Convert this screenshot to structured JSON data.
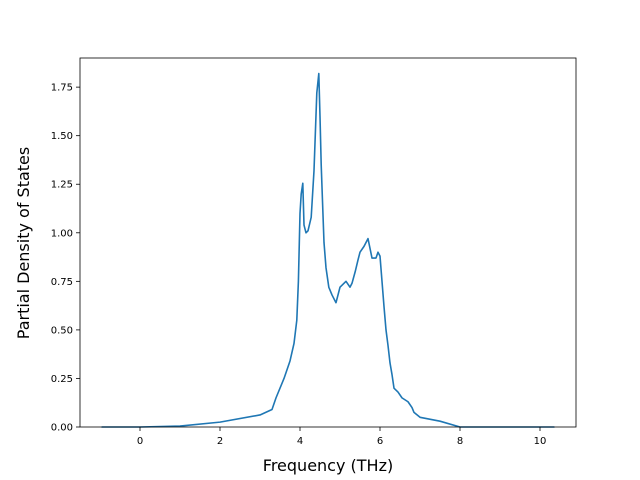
{
  "chart_data": {
    "type": "line",
    "title": "",
    "xlabel": "Frequency (THz)",
    "ylabel": "Partial Density of States",
    "xlim": [
      -1.5,
      10.9
    ],
    "ylim": [
      0.0,
      1.9
    ],
    "xticks": [
      0,
      2,
      4,
      6,
      8,
      10
    ],
    "yticks": [
      0.0,
      0.25,
      0.5,
      0.75,
      1.0,
      1.25,
      1.5,
      1.75
    ],
    "xtick_labels": [
      "0",
      "2",
      "4",
      "6",
      "8",
      "10"
    ],
    "ytick_labels": [
      "0.00",
      "0.25",
      "0.50",
      "0.75",
      "1.00",
      "1.25",
      "1.50",
      "1.75"
    ],
    "grid": false,
    "legend": "none",
    "line_color": "#1f77b4",
    "series": [
      {
        "x": [
          -0.95,
          0.0,
          1.0,
          2.0,
          3.0,
          3.3,
          3.4,
          3.6,
          3.75,
          3.85,
          3.92,
          3.96,
          4.0,
          4.03,
          4.07,
          4.1,
          4.15,
          4.2,
          4.28,
          4.35,
          4.42,
          4.47,
          4.5,
          4.53,
          4.57,
          4.6,
          4.65,
          4.72,
          4.8,
          4.9,
          5.0,
          5.15,
          5.25,
          5.3,
          5.38,
          5.45,
          5.5,
          5.6,
          5.7,
          5.8,
          5.9,
          5.95,
          6.0,
          6.05,
          6.1,
          6.15,
          6.2,
          6.25,
          6.3,
          6.35,
          6.45,
          6.55,
          6.7,
          6.8,
          6.85,
          7.0,
          7.5,
          8.0,
          8.5,
          9.0,
          9.2,
          9.35,
          9.6,
          10.35
        ],
        "y": [
          0.0,
          0.0,
          0.005,
          0.025,
          0.062,
          0.09,
          0.15,
          0.25,
          0.34,
          0.43,
          0.55,
          0.75,
          1.1,
          1.2,
          1.255,
          1.04,
          1.0,
          1.01,
          1.08,
          1.32,
          1.72,
          1.82,
          1.6,
          1.35,
          1.12,
          0.95,
          0.82,
          0.72,
          0.68,
          0.64,
          0.72,
          0.75,
          0.72,
          0.74,
          0.8,
          0.86,
          0.9,
          0.93,
          0.97,
          0.87,
          0.87,
          0.9,
          0.88,
          0.75,
          0.62,
          0.5,
          0.42,
          0.33,
          0.27,
          0.2,
          0.18,
          0.15,
          0.13,
          0.1,
          0.075,
          0.05,
          0.03,
          0.0,
          0.0,
          0.0,
          0.0,
          0.0,
          0.0,
          0.0
        ]
      }
    ]
  }
}
